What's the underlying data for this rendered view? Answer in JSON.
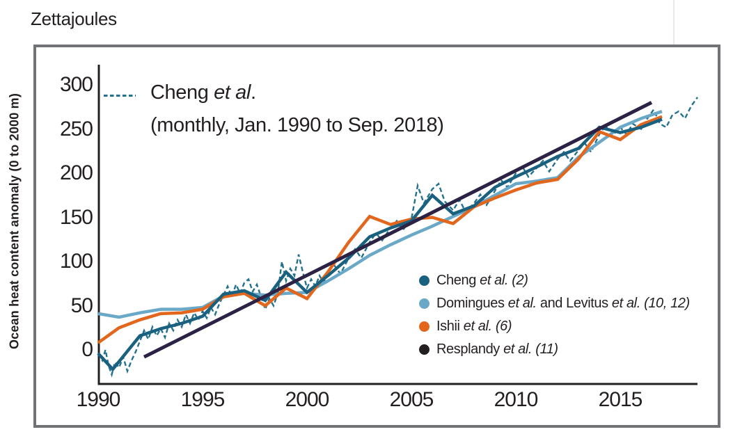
{
  "figure": {
    "unit_label": "Zettajoules",
    "y_axis_title": "Ocean heat content anomaly (0 to 2000 m)",
    "background": "#ffffff",
    "text_color": "#231f20",
    "frame_color": "#717275",
    "axis_color": "#231f20"
  },
  "annotation": {
    "swatch_color": "#24718f",
    "line1": [
      {
        "t": "Cheng ",
        "i": 1
      },
      {
        "t": "et al",
        "i": 2
      },
      {
        "t": ".",
        "i": 1
      }
    ],
    "line2": [
      {
        "t": "(monthly, Jan. 1990 to Sep. 2018)",
        "i": 1
      }
    ]
  },
  "legend": {
    "items": [
      {
        "dot_color": "#1a607f",
        "segments": [
          {
            "t": "Cheng ",
            "i": 1
          },
          {
            "t": "et al.",
            "i": 2
          },
          {
            "t": " ",
            "i": 1
          },
          {
            "t": "(2)",
            "i": 2
          }
        ]
      },
      {
        "dot_color": "#69a8c7",
        "segments": [
          {
            "t": "Domingues ",
            "i": 1
          },
          {
            "t": "et al.",
            "i": 2
          },
          {
            "t": " and Levitus ",
            "i": 1
          },
          {
            "t": "et al.",
            "i": 2
          },
          {
            "t": " ",
            "i": 1
          },
          {
            "t": "(10, 12)",
            "i": 2
          }
        ]
      },
      {
        "dot_color": "#e2661c",
        "segments": [
          {
            "t": "Ishii ",
            "i": 1
          },
          {
            "t": "et al.",
            "i": 2
          },
          {
            "t": " ",
            "i": 1
          },
          {
            "t": "(6)",
            "i": 2
          }
        ]
      },
      {
        "dot_color": "#231f20",
        "segments": [
          {
            "t": "Resplandy ",
            "i": 1
          },
          {
            "t": "et al.",
            "i": 2
          },
          {
            "t": " ",
            "i": 1
          },
          {
            "t": "(11)",
            "i": 2
          }
        ]
      }
    ]
  },
  "chart_data": {
    "type": "line",
    "title": "Zettajoules",
    "xlabel": "",
    "ylabel": "Ocean heat content anomaly (0 to 2000 m)",
    "xlim": [
      1990,
      2018.8
    ],
    "ylim": [
      -40,
      320
    ],
    "x_ticks": [
      1990,
      1995,
      2000,
      2005,
      2010,
      2015
    ],
    "y_ticks": [
      0,
      50,
      100,
      150,
      200,
      250,
      300
    ],
    "grid": false,
    "legend_position": "inside-right",
    "series": [
      {
        "name": "Cheng et al. (monthly, Jan. 1990 to Sep. 2018)",
        "color": "#24718f",
        "style": "dashed",
        "width": 2.4,
        "points": [
          [
            1990.0,
            -4
          ],
          [
            1990.2,
            -12
          ],
          [
            1990.35,
            0
          ],
          [
            1990.5,
            -18
          ],
          [
            1990.65,
            -28
          ],
          [
            1990.8,
            -14
          ],
          [
            1991.0,
            -20
          ],
          [
            1991.2,
            -8
          ],
          [
            1991.4,
            -24
          ],
          [
            1991.6,
            -12
          ],
          [
            1991.8,
            -2
          ],
          [
            1992.0,
            10
          ],
          [
            1992.2,
            22
          ],
          [
            1992.4,
            12
          ],
          [
            1992.6,
            26
          ],
          [
            1992.8,
            16
          ],
          [
            1993.0,
            24
          ],
          [
            1993.2,
            14
          ],
          [
            1993.4,
            30
          ],
          [
            1993.6,
            22
          ],
          [
            1993.8,
            34
          ],
          [
            1994.0,
            26
          ],
          [
            1994.2,
            40
          ],
          [
            1994.4,
            30
          ],
          [
            1994.6,
            42
          ],
          [
            1994.8,
            34
          ],
          [
            1995.0,
            44
          ],
          [
            1995.2,
            36
          ],
          [
            1995.4,
            48
          ],
          [
            1995.6,
            40
          ],
          [
            1995.8,
            52
          ],
          [
            1996.0,
            62
          ],
          [
            1996.2,
            72
          ],
          [
            1996.4,
            60
          ],
          [
            1996.6,
            74
          ],
          [
            1996.8,
            64
          ],
          [
            1997.0,
            76
          ],
          [
            1997.2,
            80
          ],
          [
            1997.4,
            66
          ],
          [
            1997.6,
            74
          ],
          [
            1997.8,
            60
          ],
          [
            1998.0,
            46
          ],
          [
            1998.2,
            58
          ],
          [
            1998.4,
            50
          ],
          [
            1998.6,
            64
          ],
          [
            1998.8,
            100
          ],
          [
            1999.0,
            78
          ],
          [
            1999.2,
            92
          ],
          [
            1999.4,
            84
          ],
          [
            1999.6,
            108
          ],
          [
            1999.8,
            88
          ],
          [
            2000.0,
            70
          ],
          [
            2000.2,
            80
          ],
          [
            2000.4,
            72
          ],
          [
            2000.6,
            84
          ],
          [
            2000.8,
            76
          ],
          [
            2001.0,
            88
          ],
          [
            2001.3,
            96
          ],
          [
            2001.6,
            86
          ],
          [
            2002.0,
            104
          ],
          [
            2002.3,
            114
          ],
          [
            2002.6,
            104
          ],
          [
            2003.0,
            122
          ],
          [
            2003.3,
            132
          ],
          [
            2003.6,
            124
          ],
          [
            2004.0,
            138
          ],
          [
            2004.3,
            146
          ],
          [
            2004.6,
            136
          ],
          [
            2005.0,
            148
          ],
          [
            2005.3,
            186
          ],
          [
            2005.6,
            166
          ],
          [
            2006.0,
            182
          ],
          [
            2006.3,
            188
          ],
          [
            2006.6,
            168
          ],
          [
            2007.0,
            158
          ],
          [
            2007.3,
            170
          ],
          [
            2007.6,
            156
          ],
          [
            2008.0,
            166
          ],
          [
            2008.3,
            176
          ],
          [
            2008.6,
            164
          ],
          [
            2009.0,
            180
          ],
          [
            2009.3,
            192
          ],
          [
            2009.6,
            184
          ],
          [
            2010.0,
            200
          ],
          [
            2010.3,
            208
          ],
          [
            2010.6,
            196
          ],
          [
            2011.0,
            206
          ],
          [
            2011.3,
            214
          ],
          [
            2011.6,
            202
          ],
          [
            2012.0,
            216
          ],
          [
            2012.3,
            224
          ],
          [
            2012.6,
            214
          ],
          [
            2013.0,
            226
          ],
          [
            2013.3,
            234
          ],
          [
            2013.6,
            224
          ],
          [
            2014.0,
            244
          ],
          [
            2014.3,
            254
          ],
          [
            2014.6,
            242
          ],
          [
            2015.0,
            252
          ],
          [
            2015.3,
            244
          ],
          [
            2015.6,
            256
          ],
          [
            2016.0,
            250
          ],
          [
            2016.3,
            262
          ],
          [
            2016.6,
            272
          ],
          [
            2016.9,
            256
          ],
          [
            2017.2,
            252
          ],
          [
            2017.5,
            266
          ],
          [
            2017.8,
            270
          ],
          [
            2018.1,
            262
          ],
          [
            2018.4,
            276
          ],
          [
            2018.7,
            286
          ]
        ]
      },
      {
        "name": "Domingues et al. and Levitus et al. (10, 12)",
        "color": "#69a8c7",
        "style": "solid",
        "width": 4.5,
        "points": [
          [
            1990,
            41
          ],
          [
            1991,
            37
          ],
          [
            1992,
            42
          ],
          [
            1993,
            46
          ],
          [
            1994,
            46
          ],
          [
            1995,
            48
          ],
          [
            1996,
            61
          ],
          [
            1997,
            64
          ],
          [
            1998,
            62
          ],
          [
            1999,
            64
          ],
          [
            2000,
            65
          ],
          [
            2001,
            78
          ],
          [
            2002,
            92
          ],
          [
            2003,
            107
          ],
          [
            2004,
            119
          ],
          [
            2005,
            130
          ],
          [
            2006,
            140
          ],
          [
            2007,
            151
          ],
          [
            2008,
            162
          ],
          [
            2009,
            175
          ],
          [
            2010,
            188
          ],
          [
            2011,
            191
          ],
          [
            2012,
            195
          ],
          [
            2013,
            218
          ],
          [
            2014,
            235
          ],
          [
            2015,
            252
          ],
          [
            2016,
            262
          ],
          [
            2017,
            270
          ]
        ]
      },
      {
        "name": "Ishii et al. (6)",
        "color": "#e2661c",
        "style": "solid",
        "width": 4.5,
        "points": [
          [
            1990,
            8
          ],
          [
            1991,
            25
          ],
          [
            1992,
            34
          ],
          [
            1993,
            41
          ],
          [
            1994,
            42
          ],
          [
            1995,
            46
          ],
          [
            1996,
            60
          ],
          [
            1997,
            64
          ],
          [
            1998,
            50
          ],
          [
            1999,
            70
          ],
          [
            2000,
            58
          ],
          [
            2001,
            88
          ],
          [
            2002,
            122
          ],
          [
            2003,
            151
          ],
          [
            2004,
            142
          ],
          [
            2005,
            148
          ],
          [
            2006,
            150
          ],
          [
            2007,
            143
          ],
          [
            2008,
            162
          ],
          [
            2009,
            172
          ],
          [
            2010,
            181
          ],
          [
            2011,
            189
          ],
          [
            2012,
            193
          ],
          [
            2013,
            216
          ],
          [
            2014,
            247
          ],
          [
            2015,
            238
          ],
          [
            2016,
            255
          ],
          [
            2017,
            264
          ]
        ]
      },
      {
        "name": "Cheng et al. (2)",
        "color": "#1a607f",
        "style": "solid",
        "width": 4.5,
        "points": [
          [
            1990,
            -4
          ],
          [
            1990.7,
            -22
          ],
          [
            1992,
            16
          ],
          [
            1993,
            24
          ],
          [
            1994,
            30
          ],
          [
            1995,
            38
          ],
          [
            1996,
            63
          ],
          [
            1997,
            67
          ],
          [
            1998,
            56
          ],
          [
            1999,
            88
          ],
          [
            2000,
            65
          ],
          [
            2001,
            84
          ],
          [
            2002,
            104
          ],
          [
            2003,
            128
          ],
          [
            2004,
            138
          ],
          [
            2005,
            146
          ],
          [
            2006,
            175
          ],
          [
            2007,
            154
          ],
          [
            2008,
            163
          ],
          [
            2009,
            184
          ],
          [
            2010,
            196
          ],
          [
            2011,
            207
          ],
          [
            2012,
            219
          ],
          [
            2013,
            228
          ],
          [
            2014,
            252
          ],
          [
            2015,
            246
          ],
          [
            2016,
            252
          ],
          [
            2017,
            261
          ]
        ]
      },
      {
        "name": "Resplandy et al. (11)",
        "color": "#2b2244",
        "style": "solid",
        "width": 5,
        "points": [
          [
            1992.2,
            -8
          ],
          [
            2016.5,
            280
          ]
        ]
      }
    ]
  }
}
